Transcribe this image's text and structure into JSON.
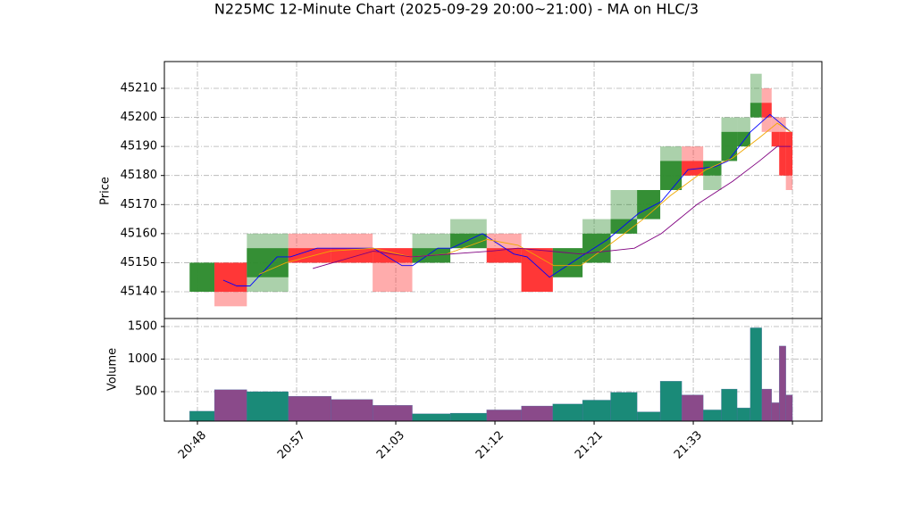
{
  "chart_data": [
    {
      "type": "candlestick",
      "title": "N225MC 12-Minute Chart (2025-09-29 20:00~21:00) - MA on HLC/3",
      "ylabel": "Price",
      "x": [
        1.4,
        8.9,
        21,
        34,
        47,
        59,
        71,
        82,
        93,
        103,
        112,
        121,
        129,
        137,
        143,
        150,
        156,
        161,
        165.5,
        169,
        172.4,
        175,
        177,
        179
      ],
      "open": [
        45140,
        45150,
        45145,
        45155,
        45155,
        45155,
        45150,
        45155,
        45155,
        45155,
        45145,
        45150,
        45160,
        45165,
        45175,
        45185,
        45180,
        45185,
        45190,
        45200,
        45205,
        45195,
        45195,
        45195
      ],
      "high": [
        45150,
        45150,
        45160,
        45160,
        45160,
        45155,
        45160,
        45165,
        45160,
        45155,
        45155,
        45165,
        45175,
        45175,
        45190,
        45190,
        45185,
        45200,
        45200,
        45215,
        45210,
        45200,
        45200,
        45195
      ],
      "low": [
        45140,
        45135,
        45140,
        45150,
        45150,
        45140,
        45150,
        45155,
        45150,
        45140,
        45145,
        45150,
        45160,
        45165,
        45175,
        45180,
        45175,
        45185,
        45190,
        45200,
        45195,
        45190,
        45180,
        45175
      ],
      "close": [
        45150,
        45140,
        45155,
        45150,
        45150,
        45150,
        45155,
        45160,
        45150,
        45140,
        45155,
        45160,
        45165,
        45175,
        45185,
        45180,
        45185,
        45195,
        45195,
        45205,
        45200,
        45190,
        45180,
        45180
      ],
      "up_color": "#2e8b2e",
      "down_color": "#ff3030",
      "ma_lines": [
        {
          "color": "#0000ff",
          "x": [
            7.8,
            11.9,
            15.9,
            24.1,
            28.1,
            36.2,
            53.2,
            61.9,
            65.1,
            72.7,
            76.8,
            86.2,
            95.7,
            99.7,
            106.5,
            115.9,
            124.1,
            133.5,
            140.3,
            148.4,
            156.5,
            160.5,
            167.3,
            173.2,
            179.5
          ],
          "values": [
            45144,
            45142,
            45142,
            45152,
            45152,
            45155,
            45155,
            45149,
            45149,
            45155,
            45155,
            45160,
            45153,
            45152,
            45145,
            45152,
            45158,
            45167,
            45171,
            45182,
            45183,
            45185,
            45195,
            45201,
            45195
          ]
        },
        {
          "color": "#f0a800",
          "x": [
            18.6,
            26.8,
            40.3,
            53.2,
            64.6,
            75.4,
            87.6,
            97.0,
            107.8,
            115.9,
            126.8,
            134.9,
            143.0,
            153.8,
            161.9,
            170.0,
            175.4,
            179.5
          ],
          "values": [
            45146,
            45150,
            45154,
            45155,
            45152,
            45153,
            45158,
            45156,
            45149,
            45149,
            45158,
            45165,
            45173,
            45182,
            45186,
            45193,
            45198,
            45195
          ]
        },
        {
          "color": "#800080",
          "x": [
            34.9,
            53.2,
            64.6,
            88.9,
            97.0,
            115.9,
            132.2,
            140.3,
            151.1,
            161.9,
            170.0,
            175.4,
            179.5
          ],
          "values": [
            45148,
            45154,
            45152,
            45154,
            45155,
            45153,
            45155,
            45160,
            45170,
            45178,
            45185,
            45190,
            45190
          ]
        }
      ],
      "xlim": [
        -10,
        188.9
      ],
      "ylim": [
        45130.8,
        45219.2
      ],
      "yticks": [
        45140,
        45150,
        45160,
        45170,
        45180,
        45190,
        45200,
        45210
      ],
      "grid": true
    },
    {
      "type": "bar",
      "ylabel": "Volume",
      "values": [
        200,
        530,
        500,
        430,
        380,
        290,
        160,
        170,
        220,
        280,
        310,
        370,
        490,
        190,
        660,
        450,
        220,
        540,
        250,
        1480,
        540,
        330,
        1200,
        450
      ],
      "up_color": "#1a8a78",
      "down_color": "#8a4a8a",
      "ylim": [
        48,
        1623
      ],
      "yticks": [
        500,
        1000,
        1500
      ],
      "xticks": [
        {
          "value": 0,
          "label": "20:48"
        },
        {
          "value": 30,
          "label": "20:57"
        },
        {
          "value": 60,
          "label": "21:03"
        },
        {
          "value": 90,
          "label": "21:12"
        },
        {
          "value": 120,
          "label": "21:21"
        },
        {
          "value": 150,
          "label": "21:33"
        },
        {
          "value": 180,
          "label": null
        }
      ],
      "grid": true
    }
  ]
}
